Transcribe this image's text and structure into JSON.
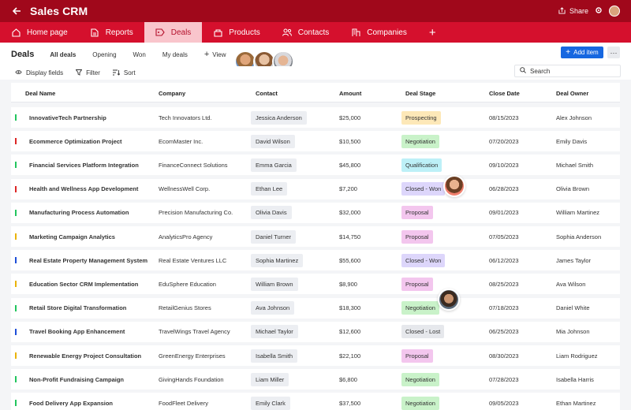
{
  "app": {
    "title": "Sales CRM",
    "share_label": "Share"
  },
  "tabs": [
    {
      "label": "Home page",
      "icon": "home-icon"
    },
    {
      "label": "Reports",
      "icon": "document-icon"
    },
    {
      "label": "Deals",
      "icon": "tag-icon",
      "active": true
    },
    {
      "label": "Products",
      "icon": "bag-icon"
    },
    {
      "label": "Contacts",
      "icon": "people-icon"
    },
    {
      "label": "Companies",
      "icon": "building-icon"
    }
  ],
  "view": {
    "title": "Deals",
    "tabs": [
      "All deals",
      "Opening",
      "Won",
      "My deals"
    ],
    "view_label": "View",
    "add_item_label": "Add item",
    "more_label": "···"
  },
  "controls": {
    "display_fields": "Display fields",
    "filter": "Filter",
    "sort": "Sort",
    "search_placeholder": "Search"
  },
  "table": {
    "headers": [
      "Deal Name",
      "Company",
      "Contact",
      "Amount",
      "Deal Stage",
      "Close Date",
      "Deal Owner"
    ],
    "rows": [
      {
        "deal": "InnovativeTech Partnership",
        "company": "Tech Innovators Ltd.",
        "contact": "Jessica Anderson",
        "amount": "$25,000",
        "stage": "Prospecting",
        "close": "08/15/2023",
        "owner": "Alex Johnson",
        "bar": "#22c55e"
      },
      {
        "deal": "Ecommerce Optimization Project",
        "company": "EcomMaster Inc.",
        "contact": "David Wilson",
        "amount": "$10,500",
        "stage": "Negotiation",
        "close": "07/20/2023",
        "owner": "Emily Davis",
        "bar": "#dc2626"
      },
      {
        "deal": "Financial Services Platform Integration",
        "company": "FinanceConnect Solutions",
        "contact": "Emma Garcia",
        "amount": "$45,800",
        "stage": "Qualification",
        "close": "09/10/2023",
        "owner": "Michael Smith",
        "bar": "#22c55e"
      },
      {
        "deal": "Health and Wellness App Development",
        "company": "WellnessWell Corp.",
        "contact": "Ethan Lee",
        "amount": "$7,200",
        "stage": "Closed - Won",
        "close": "06/28/2023",
        "owner": "Olivia Brown",
        "bar": "#dc2626"
      },
      {
        "deal": "Manufacturing Process Automation",
        "company": "Precision Manufacturing Co.",
        "contact": "Olivia Davis",
        "amount": "$32,000",
        "stage": "Proposal",
        "close": "09/01/2023",
        "owner": "William Martinez",
        "bar": "#22c55e"
      },
      {
        "deal": "Marketing Campaign Analytics",
        "company": "AnalyticsPro Agency",
        "contact": "Daniel Turner",
        "amount": "$14,750",
        "stage": "Proposal",
        "close": "07/05/2023",
        "owner": "Sophia Anderson",
        "bar": "#eab308"
      },
      {
        "deal": "Real Estate Property Management System",
        "company": "Real Estate Ventures LLC",
        "contact": "Sophia Martinez",
        "amount": "$55,600",
        "stage": "Closed - Won",
        "close": "06/12/2023",
        "owner": "James Taylor",
        "bar": "#1d4ed8"
      },
      {
        "deal": "Education Sector CRM Implementation",
        "company": "EduSphere Education",
        "contact": "William Brown",
        "amount": "$8,900",
        "stage": "Proposal",
        "close": "08/25/2023",
        "owner": "Ava Wilson",
        "bar": "#eab308"
      },
      {
        "deal": "Retail Store Digital Transformation",
        "company": "RetailGenius Stores",
        "contact": "Ava Johnson",
        "amount": "$18,300",
        "stage": "Negotiation",
        "close": "07/18/2023",
        "owner": "Daniel White",
        "bar": "#22c55e"
      },
      {
        "deal": "Travel Booking App Enhancement",
        "company": "TravelWings Travel Agency",
        "contact": "Michael Taylor",
        "amount": "$12,600",
        "stage": "Closed - Lost",
        "close": "06/25/2023",
        "owner": "Mia Johnson",
        "bar": "#1d4ed8"
      },
      {
        "deal": "Renewable Energy Project Consultation",
        "company": "GreenEnergy Enterprises",
        "contact": "Isabella Smith",
        "amount": "$22,100",
        "stage": "Proposal",
        "close": "08/30/2023",
        "owner": "Liam Rodriguez",
        "bar": "#eab308"
      },
      {
        "deal": "Non-Profit Fundraising Campaign",
        "company": "GivingHands Foundation",
        "contact": "Liam Miller",
        "amount": "$6,800",
        "stage": "Negotiation",
        "close": "07/28/2023",
        "owner": "Isabella Harris",
        "bar": "#22c55e"
      },
      {
        "deal": "Food Delivery App Expansion",
        "company": "FoodFleet Delivery",
        "contact": "Emily Clark",
        "amount": "$37,500",
        "stage": "Negotiation",
        "close": "09/05/2023",
        "owner": "Ethan Martinez",
        "bar": "#22c55e"
      }
    ]
  },
  "stage_colors": {
    "Prospecting": "#fde8b8",
    "Negotiation": "#c9f2c9",
    "Qualification": "#bdf0f7",
    "Closed - Won": "#ddd6fb",
    "Proposal": "#f3c6ee",
    "Closed - Lost": "#e6e8ec"
  },
  "colors": {
    "brand_dark": "#a0081b",
    "brand": "#d5102d",
    "accent": "#1667e0"
  }
}
